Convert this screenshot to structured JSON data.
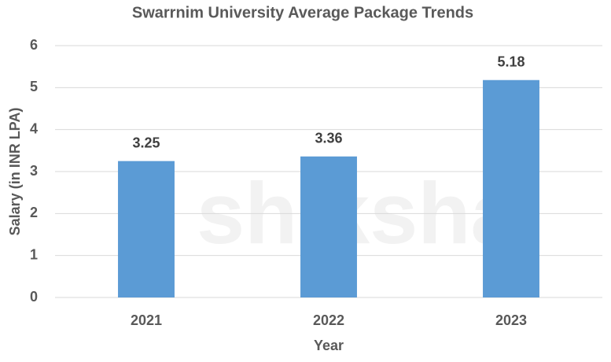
{
  "chart_data": {
    "type": "bar",
    "title": "Swarrnim University Average Package Trends",
    "watermark": "shiksha",
    "x_label": "Year",
    "y_label": "Salary (in INR LPA)",
    "categories": [
      "2021",
      "2022",
      "2023"
    ],
    "values": [
      3.25,
      3.36,
      5.18
    ],
    "color": "#5b9bd5",
    "ylim": [
      0,
      6
    ],
    "yticks": [
      0,
      1,
      2,
      3,
      4,
      5,
      6
    ],
    "grid": true
  }
}
